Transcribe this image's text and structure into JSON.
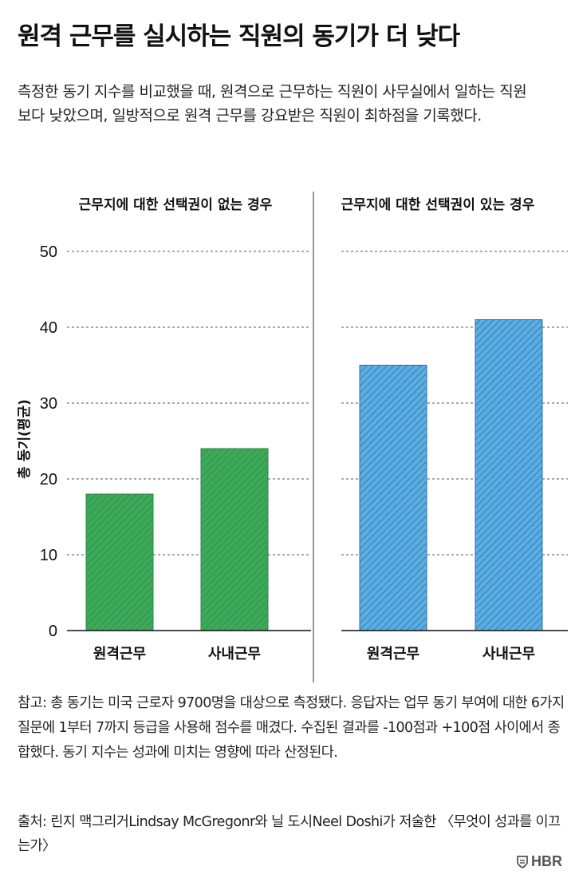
{
  "title": "원격 근무를 실시하는 직원의 동기가 더 낮다",
  "subtitle": "측정한 동기 지수를 비교했을 때, 원격으로 근무하는 직원이 사무실에서 일하는 직원보다 낮았으며, 일방적으로 원격 근무를 강요받은 직원이 최하점을 기록했다.",
  "note": "참고: 총 동기는 미국 근로자 9700명을 대상으로 측정됐다. 응답자는 업무 동기 부여에 대한 6가지 질문에 1부터 7까지 등급을 사용해 점수를 매겼다. 수집된 결과를 -100점과 +100점 사이에서 종합했다. 동기 지수는 성과에 미치는 영향에 따라 산정된다.",
  "source": "출처: 린지 맥그리거Lindsay McGregonr와 닐 도시Neel Doshi가 저술한 〈무엇이 성과를 이끄는가〉",
  "logo": "HBR",
  "chart_data": [
    {
      "type": "bar",
      "title": "근무지에 대한 선택권이 없는 경우",
      "categories": [
        "원격근무",
        "사내근무"
      ],
      "values": [
        18,
        24
      ],
      "ylabel": "총 동기(평균)",
      "ylim": [
        0,
        50
      ],
      "yticks": [
        0,
        10,
        20,
        30,
        40,
        50
      ],
      "grid": true,
      "color": "#3daa5a"
    },
    {
      "type": "bar",
      "title": "근무지에 대한 선택권이 있는 경우",
      "categories": [
        "원격근무",
        "사내근무"
      ],
      "values": [
        35,
        41
      ],
      "ylim": [
        0,
        50
      ],
      "grid": true,
      "color": "#5aaee3"
    }
  ]
}
